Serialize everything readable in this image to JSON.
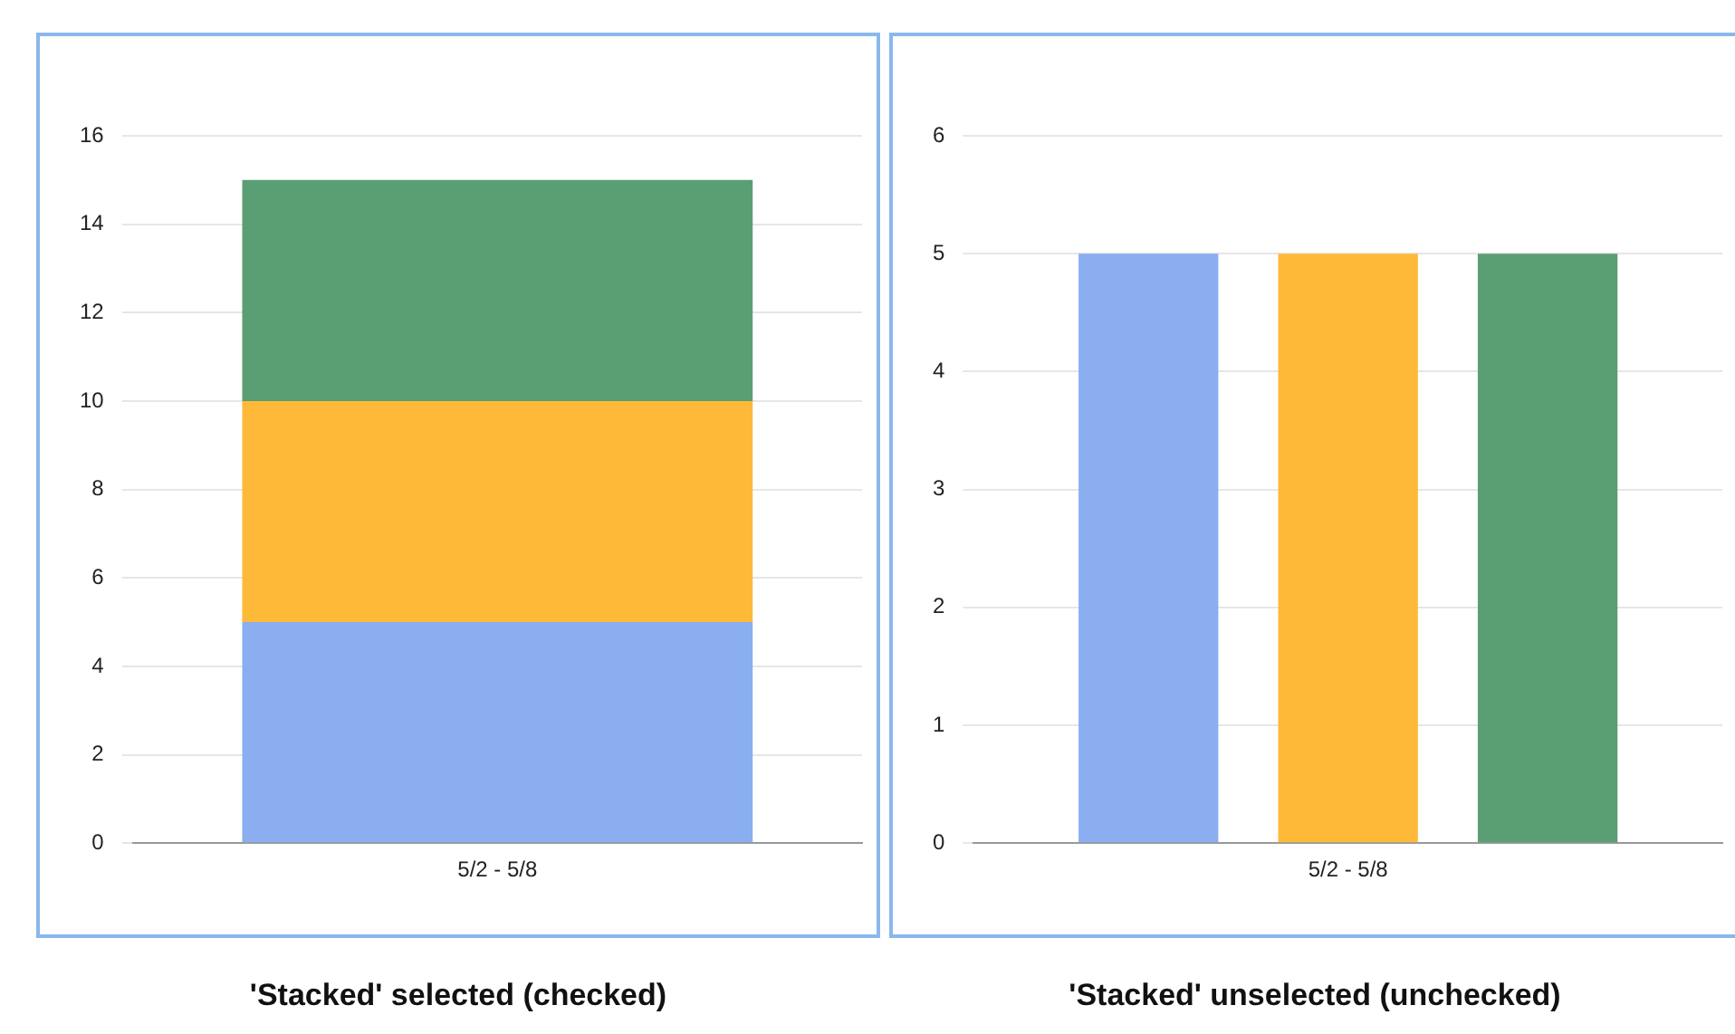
{
  "chart_data": [
    {
      "type": "bar",
      "title": "'Stacked' selected (checked)",
      "stacked": true,
      "categories": [
        "5/2 - 5/8"
      ],
      "series": [
        {
          "color": "#8aaef0",
          "values": [
            5
          ]
        },
        {
          "color": "#ffb938",
          "values": [
            5
          ]
        },
        {
          "color": "#5a9e74",
          "values": [
            5
          ]
        }
      ],
      "ylim": [
        0,
        16
      ],
      "yticks": [
        0,
        2,
        4,
        6,
        8,
        10,
        12,
        14,
        16
      ],
      "grid": "y",
      "legend": false
    },
    {
      "type": "bar",
      "title": "'Stacked' unselected (unchecked)",
      "categories": [
        "5/2 - 5/8"
      ],
      "series": [
        {
          "color": "#8aaef0",
          "values": [
            5
          ]
        },
        {
          "color": "#ffb938",
          "values": [
            5
          ]
        },
        {
          "color": "#5a9e74",
          "values": [
            5
          ]
        }
      ],
      "ylim": [
        0,
        6
      ],
      "yticks": [
        0,
        1,
        2,
        3,
        4,
        5,
        6
      ],
      "grid": "y",
      "legend": false
    }
  ]
}
